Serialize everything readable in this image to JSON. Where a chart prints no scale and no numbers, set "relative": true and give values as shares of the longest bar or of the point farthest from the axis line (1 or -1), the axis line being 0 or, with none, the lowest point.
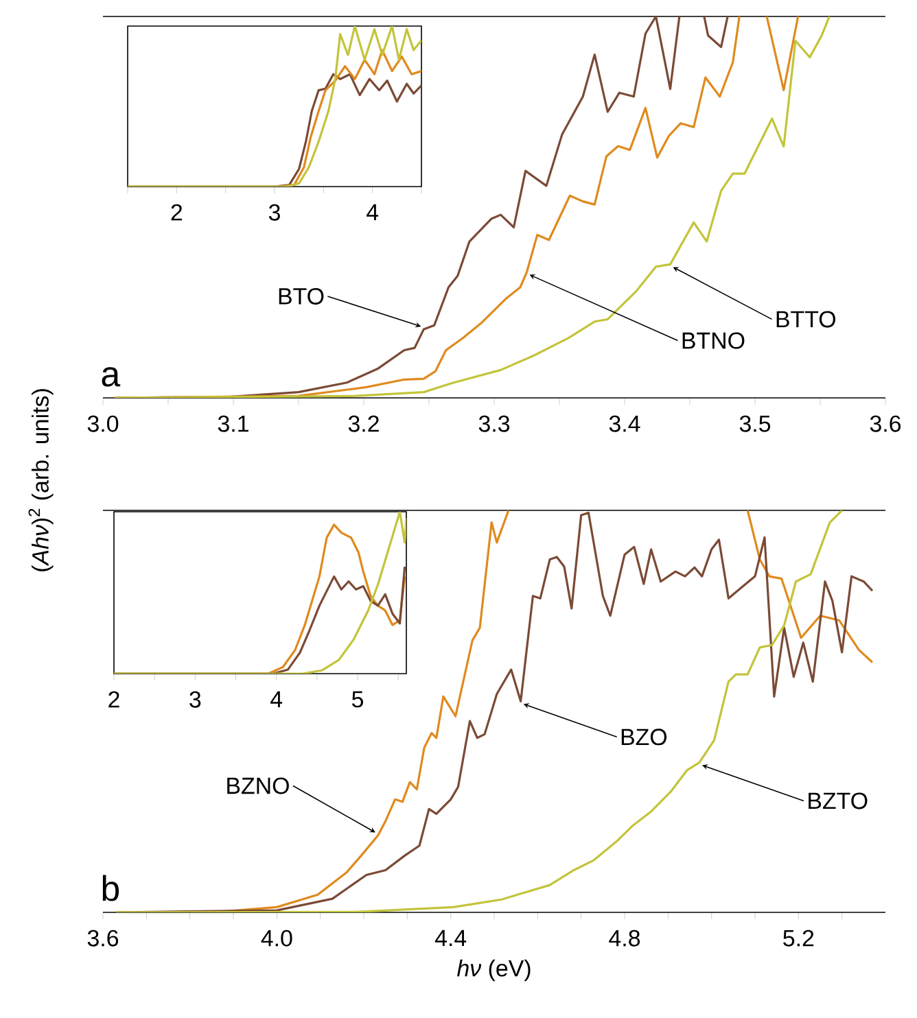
{
  "chart_data": [
    {
      "type": "line",
      "relative": true,
      "tick_labels": "x",
      "xlim": [
        3.0,
        3.6
      ],
      "xticks": [
        {
          "value": 3.0,
          "label": "3.0"
        },
        {
          "value": 3.05,
          "label": null
        },
        {
          "value": 3.1,
          "label": "3.1"
        },
        {
          "value": 3.15,
          "label": null
        },
        {
          "value": 3.2,
          "label": "3.2"
        },
        {
          "value": 3.25,
          "label": null
        },
        {
          "value": 3.3,
          "label": "3.3"
        },
        {
          "value": 3.35,
          "label": null
        },
        {
          "value": 3.4,
          "label": "3.4"
        },
        {
          "value": 3.45,
          "label": null
        },
        {
          "value": 3.5,
          "label": "3.5"
        },
        {
          "value": 3.55,
          "label": null
        },
        {
          "value": 3.6,
          "label": "3.6"
        }
      ],
      "series": [
        {
          "color": "#7b4a36",
          "x": [
            3.009,
            3.098,
            3.15,
            3.187,
            3.211,
            3.231,
            3.239,
            3.246,
            3.254,
            3.265,
            3.272,
            3.281,
            3.298,
            3.305,
            3.315,
            3.324,
            3.34,
            3.352,
            3.368,
            3.377,
            3.387,
            3.396,
            3.407,
            3.416,
            3.424,
            3.435,
            3.442,
            3.452,
            3.461,
            3.464,
            3.474,
            3.479
          ],
          "values": [
            0,
            0.003,
            0.015,
            0.04,
            0.077,
            0.125,
            0.131,
            0.18,
            0.19,
            0.29,
            0.32,
            0.41,
            0.47,
            0.48,
            0.447,
            0.595,
            0.556,
            0.69,
            0.79,
            0.9,
            0.75,
            0.8,
            0.79,
            0.955,
            1,
            0.81,
            1,
            null,
            1,
            0.95,
            0.92,
            1
          ]
        },
        {
          "color": "#e08a1e",
          "x": [
            3.009,
            3.15,
            3.202,
            3.231,
            3.246,
            3.255,
            3.263,
            3.276,
            3.29,
            3.309,
            3.32,
            3.325,
            3.333,
            3.342,
            3.358,
            3.368,
            3.377,
            3.386,
            3.395,
            3.404,
            3.416,
            3.425,
            3.434,
            3.443,
            3.453,
            3.462,
            3.473,
            3.483,
            3.488,
            3.5,
            3.509,
            3.522,
            3.533
          ],
          "values": [
            0,
            0.005,
            0.028,
            0.048,
            0.05,
            0.07,
            0.125,
            0.157,
            0.196,
            0.26,
            0.29,
            0.33,
            0.427,
            0.414,
            0.53,
            0.515,
            0.507,
            0.633,
            0.66,
            0.65,
            0.76,
            0.63,
            0.687,
            0.72,
            0.71,
            0.84,
            0.79,
            0.88,
            1,
            null,
            1,
            0.807,
            1
          ]
        },
        {
          "color": "#c3c43a",
          "x": [
            3.009,
            3.194,
            3.246,
            3.268,
            3.305,
            3.331,
            3.357,
            3.377,
            3.387,
            3.409,
            3.424,
            3.435,
            3.453,
            3.463,
            3.474,
            3.483,
            3.492,
            3.513,
            3.522,
            3.531,
            3.542,
            3.551,
            3.557
          ],
          "values": [
            0,
            0.005,
            0.015,
            0.039,
            0.073,
            0.112,
            0.157,
            0.2,
            0.206,
            0.28,
            0.344,
            0.35,
            0.46,
            0.41,
            0.543,
            0.588,
            0.588,
            0.732,
            0.659,
            0.936,
            0.893,
            0.949,
            1
          ]
        }
      ],
      "annotations": [
        "a",
        {
          "text": "BTO",
          "x": 3.246,
          "y": 0.18
        },
        {
          "text": "BTNO",
          "x": 3.325,
          "y": 0.33
        },
        {
          "text": "BTTO",
          "x": 3.435,
          "y": 0.35
        }
      ]
    },
    {
      "type": "line",
      "relative": true,
      "tick_labels": "x",
      "xlim": [
        1.5,
        4.5
      ],
      "xticks": [
        {
          "value": 1.5,
          "label": null
        },
        2,
        {
          "value": 2.5,
          "label": null
        },
        3,
        {
          "value": 3.5,
          "label": null
        },
        4,
        {
          "value": 4.5,
          "label": null
        }
      ],
      "series": [
        {
          "color": "#7b4a36",
          "x": [
            1.5,
            3.0,
            3.15,
            3.25,
            3.32,
            3.38,
            3.45,
            3.52,
            3.6,
            3.67,
            3.77,
            3.87,
            3.97,
            4.07,
            4.15,
            4.25,
            4.35,
            4.42,
            4.5
          ],
          "values": [
            0,
            0,
            0.01,
            0.11,
            0.28,
            0.47,
            0.6,
            0.61,
            0.7,
            0.67,
            0.7,
            0.57,
            0.67,
            0.6,
            0.66,
            0.53,
            0.64,
            0.58,
            0.63
          ]
        },
        {
          "color": "#e08a1e",
          "x": [
            1.5,
            3.05,
            3.2,
            3.3,
            3.37,
            3.45,
            3.52,
            3.62,
            3.72,
            3.82,
            3.92,
            4.02,
            4.1,
            4.2,
            4.3,
            4.4,
            4.5
          ],
          "values": [
            0,
            0,
            0.01,
            0.12,
            0.31,
            0.47,
            0.6,
            0.66,
            0.75,
            0.67,
            0.79,
            0.7,
            0.85,
            0.72,
            0.81,
            0.7,
            0.72
          ]
        },
        {
          "color": "#c3c43a",
          "x": [
            1.5,
            3.12,
            3.25,
            3.35,
            3.45,
            3.55,
            3.62,
            3.67,
            3.75,
            3.82,
            3.92,
            4.02,
            4.1,
            4.2,
            4.27,
            4.35,
            4.42,
            4.5
          ],
          "values": [
            0,
            0,
            0.02,
            0.12,
            0.28,
            0.47,
            0.67,
            0.95,
            0.82,
            1,
            0.79,
            0.98,
            0.82,
            1,
            0.79,
            0.98,
            0.85,
            0.91
          ]
        }
      ]
    },
    {
      "type": "line",
      "relative": true,
      "tick_labels": "x",
      "xlim": [
        3.6,
        5.4
      ],
      "xlabel": "*hν* (eV)",
      "ylabel": "(*Ahν*)$^{2}$ (arb. units)",
      "xticks": [
        {
          "value": 3.6,
          "label": "3.6"
        },
        {
          "value": 3.7,
          "label": null
        },
        {
          "value": 3.8,
          "label": null
        },
        {
          "value": 3.9,
          "label": null
        },
        {
          "value": 4.0,
          "label": "4.0"
        },
        {
          "value": 4.1,
          "label": null
        },
        {
          "value": 4.2,
          "label": null
        },
        {
          "value": 4.3,
          "label": null
        },
        {
          "value": 4.4,
          "label": "4.4"
        },
        {
          "value": 4.5,
          "label": null
        },
        {
          "value": 4.6,
          "label": null
        },
        {
          "value": 4.7,
          "label": null
        },
        {
          "value": 4.8,
          "label": "4.8"
        },
        {
          "value": 4.9,
          "label": null
        },
        {
          "value": 5.0,
          "label": null
        },
        {
          "value": 5.1,
          "label": null
        },
        {
          "value": 5.2,
          "label": "5.2"
        },
        {
          "value": 5.3,
          "label": null
        }
      ],
      "series": [
        {
          "color": "#e08a1e",
          "x": [
            3.63,
            3.85,
            4.0,
            4.094,
            4.161,
            4.194,
            4.233,
            4.25,
            4.272,
            4.289,
            4.306,
            4.322,
            4.339,
            4.356,
            4.367,
            4.383,
            4.411,
            4.45,
            4.467,
            4.494,
            4.506,
            4.533,
            4.8,
            5.083,
            5.111,
            5.133,
            5.161,
            5.206,
            5.25,
            5.294,
            5.339,
            5.37
          ],
          "values": [
            0,
            0,
            0.013,
            0.044,
            0.1,
            0.141,
            0.192,
            0.227,
            0.281,
            0.275,
            0.324,
            0.306,
            0.409,
            0.446,
            0.434,
            0.537,
            0.488,
            0.677,
            0.708,
            0.97,
            0.92,
            1,
            null,
            1,
            0.878,
            0.836,
            0.83,
            0.683,
            0.738,
            0.726,
            0.653,
            0.622
          ]
        },
        {
          "color": "#7b4a36",
          "x": [
            3.63,
            4.0,
            4.128,
            4.206,
            4.25,
            4.294,
            4.328,
            4.35,
            4.367,
            4.4,
            4.417,
            4.444,
            4.461,
            4.478,
            4.506,
            4.539,
            4.561,
            4.589,
            4.606,
            4.628,
            4.644,
            4.661,
            4.678,
            4.7,
            4.717,
            4.75,
            4.767,
            4.8,
            4.822,
            4.844,
            4.861,
            4.883,
            4.917,
            4.939,
            4.961,
            4.978,
            5.0,
            5.017,
            5.039,
            5.072,
            5.1,
            5.122,
            5.144,
            5.167,
            5.189,
            5.211,
            5.233,
            5.261,
            5.278,
            5.3,
            5.322,
            5.35,
            5.37
          ],
          "values": [
            0,
            0.005,
            0.034,
            0.093,
            0.105,
            0.141,
            0.166,
            0.257,
            0.245,
            0.281,
            0.312,
            0.476,
            0.434,
            0.443,
            0.543,
            0.604,
            0.525,
            0.787,
            0.781,
            0.878,
            0.884,
            0.86,
            0.756,
            0.988,
            0.994,
            0.787,
            0.738,
            0.89,
            0.909,
            0.817,
            0.903,
            0.823,
            0.848,
            0.836,
            0.858,
            0.836,
            0.903,
            0.927,
            0.781,
            0.811,
            0.836,
            0.933,
            0.537,
            0.708,
            0.586,
            0.671,
            0.574,
            0.823,
            0.775,
            0.647,
            0.836,
            0.823,
            0.8
          ]
        },
        {
          "color": "#c3c43a",
          "x": [
            3.63,
            4.183,
            4.406,
            4.517,
            4.572,
            4.628,
            4.683,
            4.728,
            4.783,
            4.817,
            4.861,
            4.906,
            4.944,
            4.972,
            5.006,
            5.039,
            5.056,
            5.083,
            5.111,
            5.139,
            5.167,
            5.194,
            5.228,
            5.272,
            5.3
          ],
          "values": [
            0,
            0.001,
            0.013,
            0.032,
            0.05,
            0.068,
            0.105,
            0.129,
            0.178,
            0.214,
            0.251,
            0.3,
            0.354,
            0.373,
            0.428,
            0.574,
            0.592,
            0.592,
            0.659,
            0.665,
            0.714,
            0.823,
            0.841,
            0.97,
            1
          ]
        }
      ],
      "annotations": [
        "b",
        {
          "text": "BZNO",
          "x": 4.233,
          "y": 0.192
        },
        {
          "text": "BZO",
          "x": 4.561,
          "y": 0.525
        },
        {
          "text": "BZTO",
          "x": 4.972,
          "y": 0.373
        }
      ]
    },
    {
      "type": "line",
      "relative": true,
      "tick_labels": "x",
      "xlim": [
        2,
        5.6
      ],
      "xticks": [
        2,
        {
          "value": 2.5,
          "label": null
        },
        3,
        {
          "value": 3.5,
          "label": null
        },
        4,
        {
          "value": 4.5,
          "label": null
        },
        5,
        {
          "value": 5.5,
          "label": null
        }
      ],
      "series": [
        {
          "color": "#e08a1e",
          "x": [
            2,
            3.9,
            4.08,
            4.23,
            4.35,
            4.44,
            4.53,
            4.62,
            4.71,
            4.8,
            4.92,
            5.01,
            5.07,
            5.16,
            5.25,
            5.34,
            5.43,
            5.52,
            5.58
          ],
          "values": [
            0,
            0,
            0.04,
            0.145,
            0.3,
            0.45,
            0.6,
            0.84,
            0.92,
            0.87,
            0.84,
            0.75,
            0.63,
            0.48,
            0.42,
            0.39,
            0.3,
            0.33,
            0.6
          ]
        },
        {
          "color": "#7b4a36",
          "x": [
            2,
            3.96,
            4.14,
            4.29,
            4.41,
            4.53,
            4.62,
            4.71,
            4.8,
            4.89,
            4.98,
            5.07,
            5.16,
            5.25,
            5.34,
            5.43,
            5.52,
            5.58
          ],
          "values": [
            0,
            0,
            0.024,
            0.13,
            0.27,
            0.42,
            0.51,
            0.6,
            0.52,
            0.57,
            0.52,
            0.54,
            0.45,
            0.42,
            0.49,
            0.37,
            0.31,
            0.66
          ]
        },
        {
          "color": "#c3c43a",
          "x": [
            2,
            4.32,
            4.56,
            4.77,
            4.95,
            5.13,
            5.25,
            5.37,
            5.46,
            5.52,
            5.58,
            5.6
          ],
          "values": [
            0,
            0,
            0.02,
            0.085,
            0.21,
            0.39,
            0.55,
            0.75,
            0.9,
            1,
            0.81,
            0.96
          ]
        }
      ]
    }
  ]
}
